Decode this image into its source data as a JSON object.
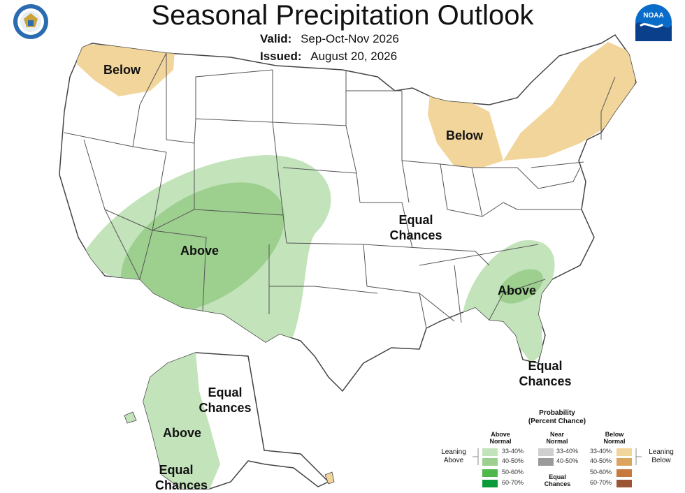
{
  "title": "Seasonal Precipitation Outlook",
  "valid_label": "Valid:",
  "valid_value": "Sep-Oct-Nov 2026",
  "issued_label": "Issued:",
  "issued_value": "August 20, 2026",
  "logos": {
    "left": "department-of-commerce-seal",
    "right": "noaa-logo",
    "noaa_text": "NOAA"
  },
  "map_labels": {
    "nw_below": "Below",
    "ne_below": "Below",
    "sw_above": "Above",
    "central_equal_1": "Equal",
    "central_equal_2": "Chances",
    "se_above": "Above",
    "fl_equal_1": "Equal",
    "fl_equal_2": "Chances",
    "ak_equal_1": "Equal",
    "ak_equal_2": "Chances",
    "ak_above": "Above",
    "ak_s_equal_1": "Equal",
    "ak_s_equal_2": "Chances"
  },
  "colors": {
    "above_33_40": "#c3e3bb",
    "above_40_50": "#9dd08f",
    "above_50_60": "#4fb84a",
    "above_60_70": "#0b9a3a",
    "near_33_40": "#cfcfcf",
    "near_40_50": "#9a9a9a",
    "below_33_40": "#f2d59a",
    "below_40_50": "#dca55f",
    "below_50_60": "#c87a3e",
    "below_60_70": "#9b5534",
    "state_line": "#444444"
  },
  "legend": {
    "title_1": "Probability",
    "title_2": "(Percent Chance)",
    "above_head_1": "Above",
    "above_head_2": "Normal",
    "near_head_1": "Near",
    "near_head_2": "Normal",
    "below_head_1": "Below",
    "below_head_2": "Normal",
    "above_rows": [
      "33-40%",
      "40-50%",
      "50-60%",
      "60-70%"
    ],
    "near_rows": [
      "33-40%",
      "40-50%"
    ],
    "below_rows": [
      "33-40%",
      "40-50%",
      "50-60%",
      "60-70%"
    ],
    "near_equal_1": "Equal",
    "near_equal_2": "Chances",
    "leaning_above_1": "Leaning",
    "leaning_above_2": "Above",
    "leaning_below_1": "Leaning",
    "leaning_below_2": "Below"
  }
}
